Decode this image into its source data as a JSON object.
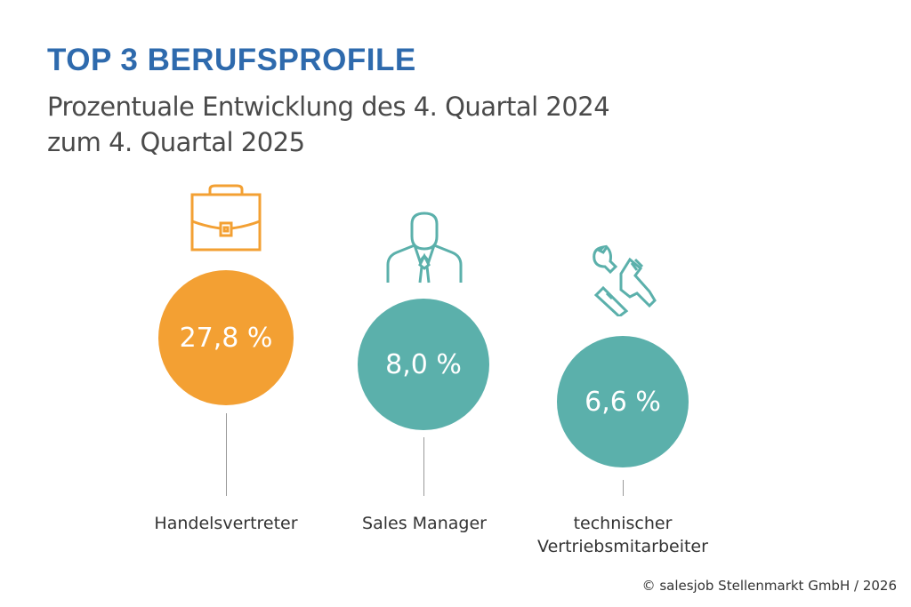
{
  "title": "TOP 3 BERUFSPROFILE",
  "subtitle_line1": "Prozentuale Entwicklung des 4. Quartal 2024",
  "subtitle_line2": "zum 4. Quartal 2025",
  "copyright": "© salesjob Stellenmarkt GmbH / 2026",
  "colors": {
    "title": "#2e6aad",
    "orange": "#f3a033",
    "teal": "#5bb0ab"
  },
  "chart_data": {
    "type": "bubble",
    "title": "TOP 3 BERUFSPROFILE",
    "categories": [
      "Handelsvertreter",
      "Sales Manager",
      "technischer Vertriebsmitarbeiter"
    ],
    "values": [
      27.8,
      8.0,
      6.6
    ],
    "value_labels": [
      "27,8 %",
      "8,0 %",
      "6,6 %"
    ],
    "icons": [
      "briefcase-icon",
      "businessman-icon",
      "wrench-hand-icon"
    ],
    "unit": "%"
  },
  "labels": {
    "c3_line1": "technischer",
    "c3_line2": "Vertriebsmitarbeiter"
  }
}
